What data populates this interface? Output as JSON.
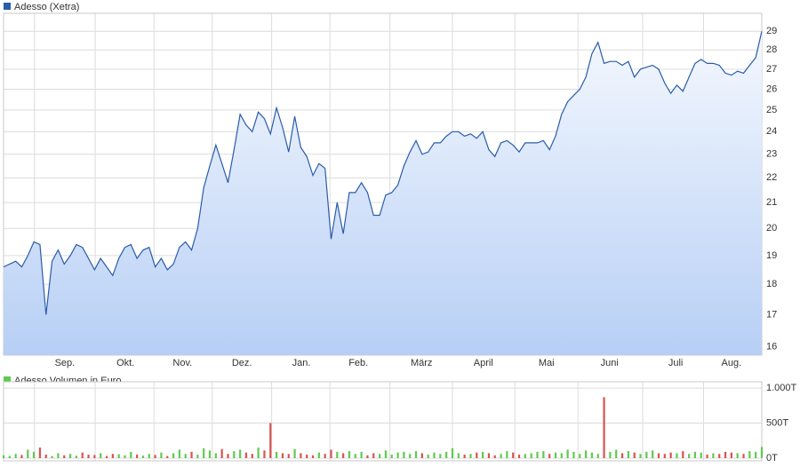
{
  "chart_data": [
    {
      "type": "area",
      "title": "Adesso (Xetra)",
      "color": "#2a5caa",
      "log_scale": true,
      "grid": true,
      "values": [
        18.6,
        18.7,
        18.8,
        18.6,
        19.0,
        19.5,
        19.4,
        17.0,
        18.8,
        19.2,
        18.7,
        19.0,
        19.4,
        19.3,
        18.9,
        18.5,
        18.9,
        18.6,
        18.3,
        18.9,
        19.3,
        19.4,
        18.9,
        19.2,
        19.3,
        18.6,
        18.9,
        18.5,
        18.7,
        19.3,
        19.5,
        19.2,
        20.0,
        21.6,
        22.5,
        23.4,
        22.6,
        21.8,
        23.2,
        24.8,
        24.3,
        24.0,
        24.9,
        24.6,
        23.9,
        25.1,
        24.2,
        23.1,
        24.7,
        23.3,
        22.9,
        22.1,
        22.6,
        22.4,
        19.6,
        21.0,
        19.8,
        21.4,
        21.4,
        21.8,
        21.4,
        20.5,
        20.5,
        21.3,
        21.4,
        21.7,
        22.5,
        23.1,
        23.6,
        23.0,
        23.1,
        23.5,
        23.5,
        23.8,
        24.0,
        24.0,
        23.8,
        23.9,
        23.7,
        24.0,
        23.2,
        22.9,
        23.5,
        23.6,
        23.4,
        23.1,
        23.5,
        23.5,
        23.5,
        23.6,
        23.2,
        23.8,
        24.8,
        25.4,
        25.7,
        26.0,
        26.6,
        27.8,
        28.4,
        27.3,
        27.4,
        27.4,
        27.2,
        27.4,
        26.6,
        27.0,
        27.1,
        27.2,
        27.0,
        26.3,
        25.8,
        26.2,
        25.9,
        26.6,
        27.3,
        27.5,
        27.3,
        27.3,
        27.2,
        26.8,
        26.7,
        26.9,
        26.8,
        27.2,
        27.6,
        29.0
      ],
      "xlim": [
        0,
        125
      ],
      "xticks": [
        {
          "value": 10.1,
          "label": "Sep."
        },
        {
          "value": 20.1,
          "label": "Okt."
        },
        {
          "value": 29.5,
          "label": "Nov."
        },
        {
          "value": 39.3,
          "label": "Dez."
        },
        {
          "value": 49.1,
          "label": "Jan."
        },
        {
          "value": 58.5,
          "label": "Feb."
        },
        {
          "value": 68.9,
          "label": "März"
        },
        {
          "value": 79.1,
          "label": "April"
        },
        {
          "value": 89.5,
          "label": "Mai"
        },
        {
          "value": 99.9,
          "label": "Juni"
        },
        {
          "value": 110.8,
          "label": "Juli"
        },
        {
          "value": 120.0,
          "label": "Aug."
        }
      ],
      "ylim": [
        15.75,
        30
      ],
      "yticks": [
        16,
        17,
        18,
        19,
        20,
        21,
        22,
        23,
        24,
        25,
        26,
        27,
        28,
        29
      ]
    },
    {
      "type": "bar",
      "title": "Adesso Volumen in Euro",
      "color": "#5ecb4f",
      "down_color": "#d9534f",
      "grid": true,
      "values": [
        40,
        30,
        60,
        45,
        120,
        90,
        150,
        50,
        30,
        70,
        40,
        60,
        35,
        80,
        50,
        45,
        70,
        30,
        60,
        55,
        40,
        90,
        50,
        35,
        60,
        45,
        80,
        30,
        70,
        120,
        60,
        90,
        50,
        140,
        110,
        70,
        130,
        60,
        100,
        120,
        80,
        60,
        150,
        110,
        500,
        90,
        70,
        60,
        130,
        70,
        50,
        40,
        80,
        60,
        120,
        90,
        70,
        100,
        60,
        90,
        40,
        70,
        60,
        110,
        50,
        80,
        90,
        60,
        100,
        70,
        50,
        80,
        60,
        90,
        140,
        70,
        50,
        60,
        80,
        90,
        70,
        40,
        60,
        100,
        80,
        50,
        60,
        70,
        90,
        100,
        60,
        80,
        70,
        120,
        90,
        60,
        110,
        80,
        60,
        870,
        90,
        120,
        70,
        100,
        80,
        60,
        90,
        110,
        70,
        60,
        80,
        70,
        100,
        60,
        90,
        80,
        50,
        70,
        60,
        90,
        80,
        70,
        60,
        100,
        90,
        160
      ],
      "ylim": [
        0,
        1090
      ],
      "yticks": [
        {
          "value": 0,
          "label": "0T"
        },
        {
          "value": 500,
          "label": "500T"
        },
        {
          "value": 1000,
          "label": "1.000T"
        }
      ]
    }
  ]
}
